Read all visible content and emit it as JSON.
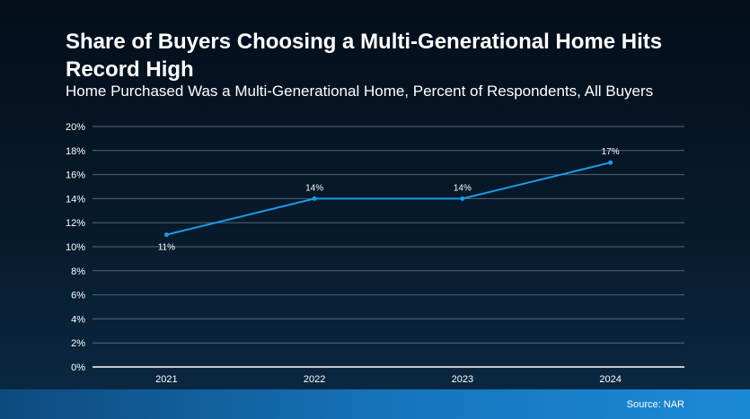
{
  "title": "Share of Buyers Choosing a Multi-Generational Home Hits Record High",
  "subtitle": "Home Purchased Was a Multi-Generational Home, Percent of Respondents, All Buyers",
  "source": "Source: NAR",
  "colors": {
    "line": "#1a9be6",
    "grid": "#55657a",
    "axis": "#ffffff",
    "bar_start": "#0d4a7e",
    "bar_end": "#1b8ad6"
  },
  "chart_data": {
    "type": "line",
    "title": "Share of Buyers Choosing a Multi-Generational Home Hits Record High",
    "subtitle": "Home Purchased Was a Multi-Generational Home, Percent of Respondents, All Buyers",
    "categories": [
      "2021",
      "2022",
      "2023",
      "2024"
    ],
    "series": [
      {
        "values": [
          11,
          14,
          14,
          17
        ],
        "labels": [
          "11%",
          "14%",
          "14%",
          "17%"
        ]
      }
    ],
    "ylim": [
      0,
      20
    ],
    "yticks": [
      0,
      2,
      4,
      6,
      8,
      10,
      12,
      14,
      16,
      18,
      20
    ],
    "ytick_labels": [
      "0%",
      "2%",
      "4%",
      "6%",
      "8%",
      "10%",
      "12%",
      "14%",
      "16%",
      "18%",
      "20%"
    ],
    "grid": true,
    "legend": "none",
    "source": "Source: NAR"
  }
}
